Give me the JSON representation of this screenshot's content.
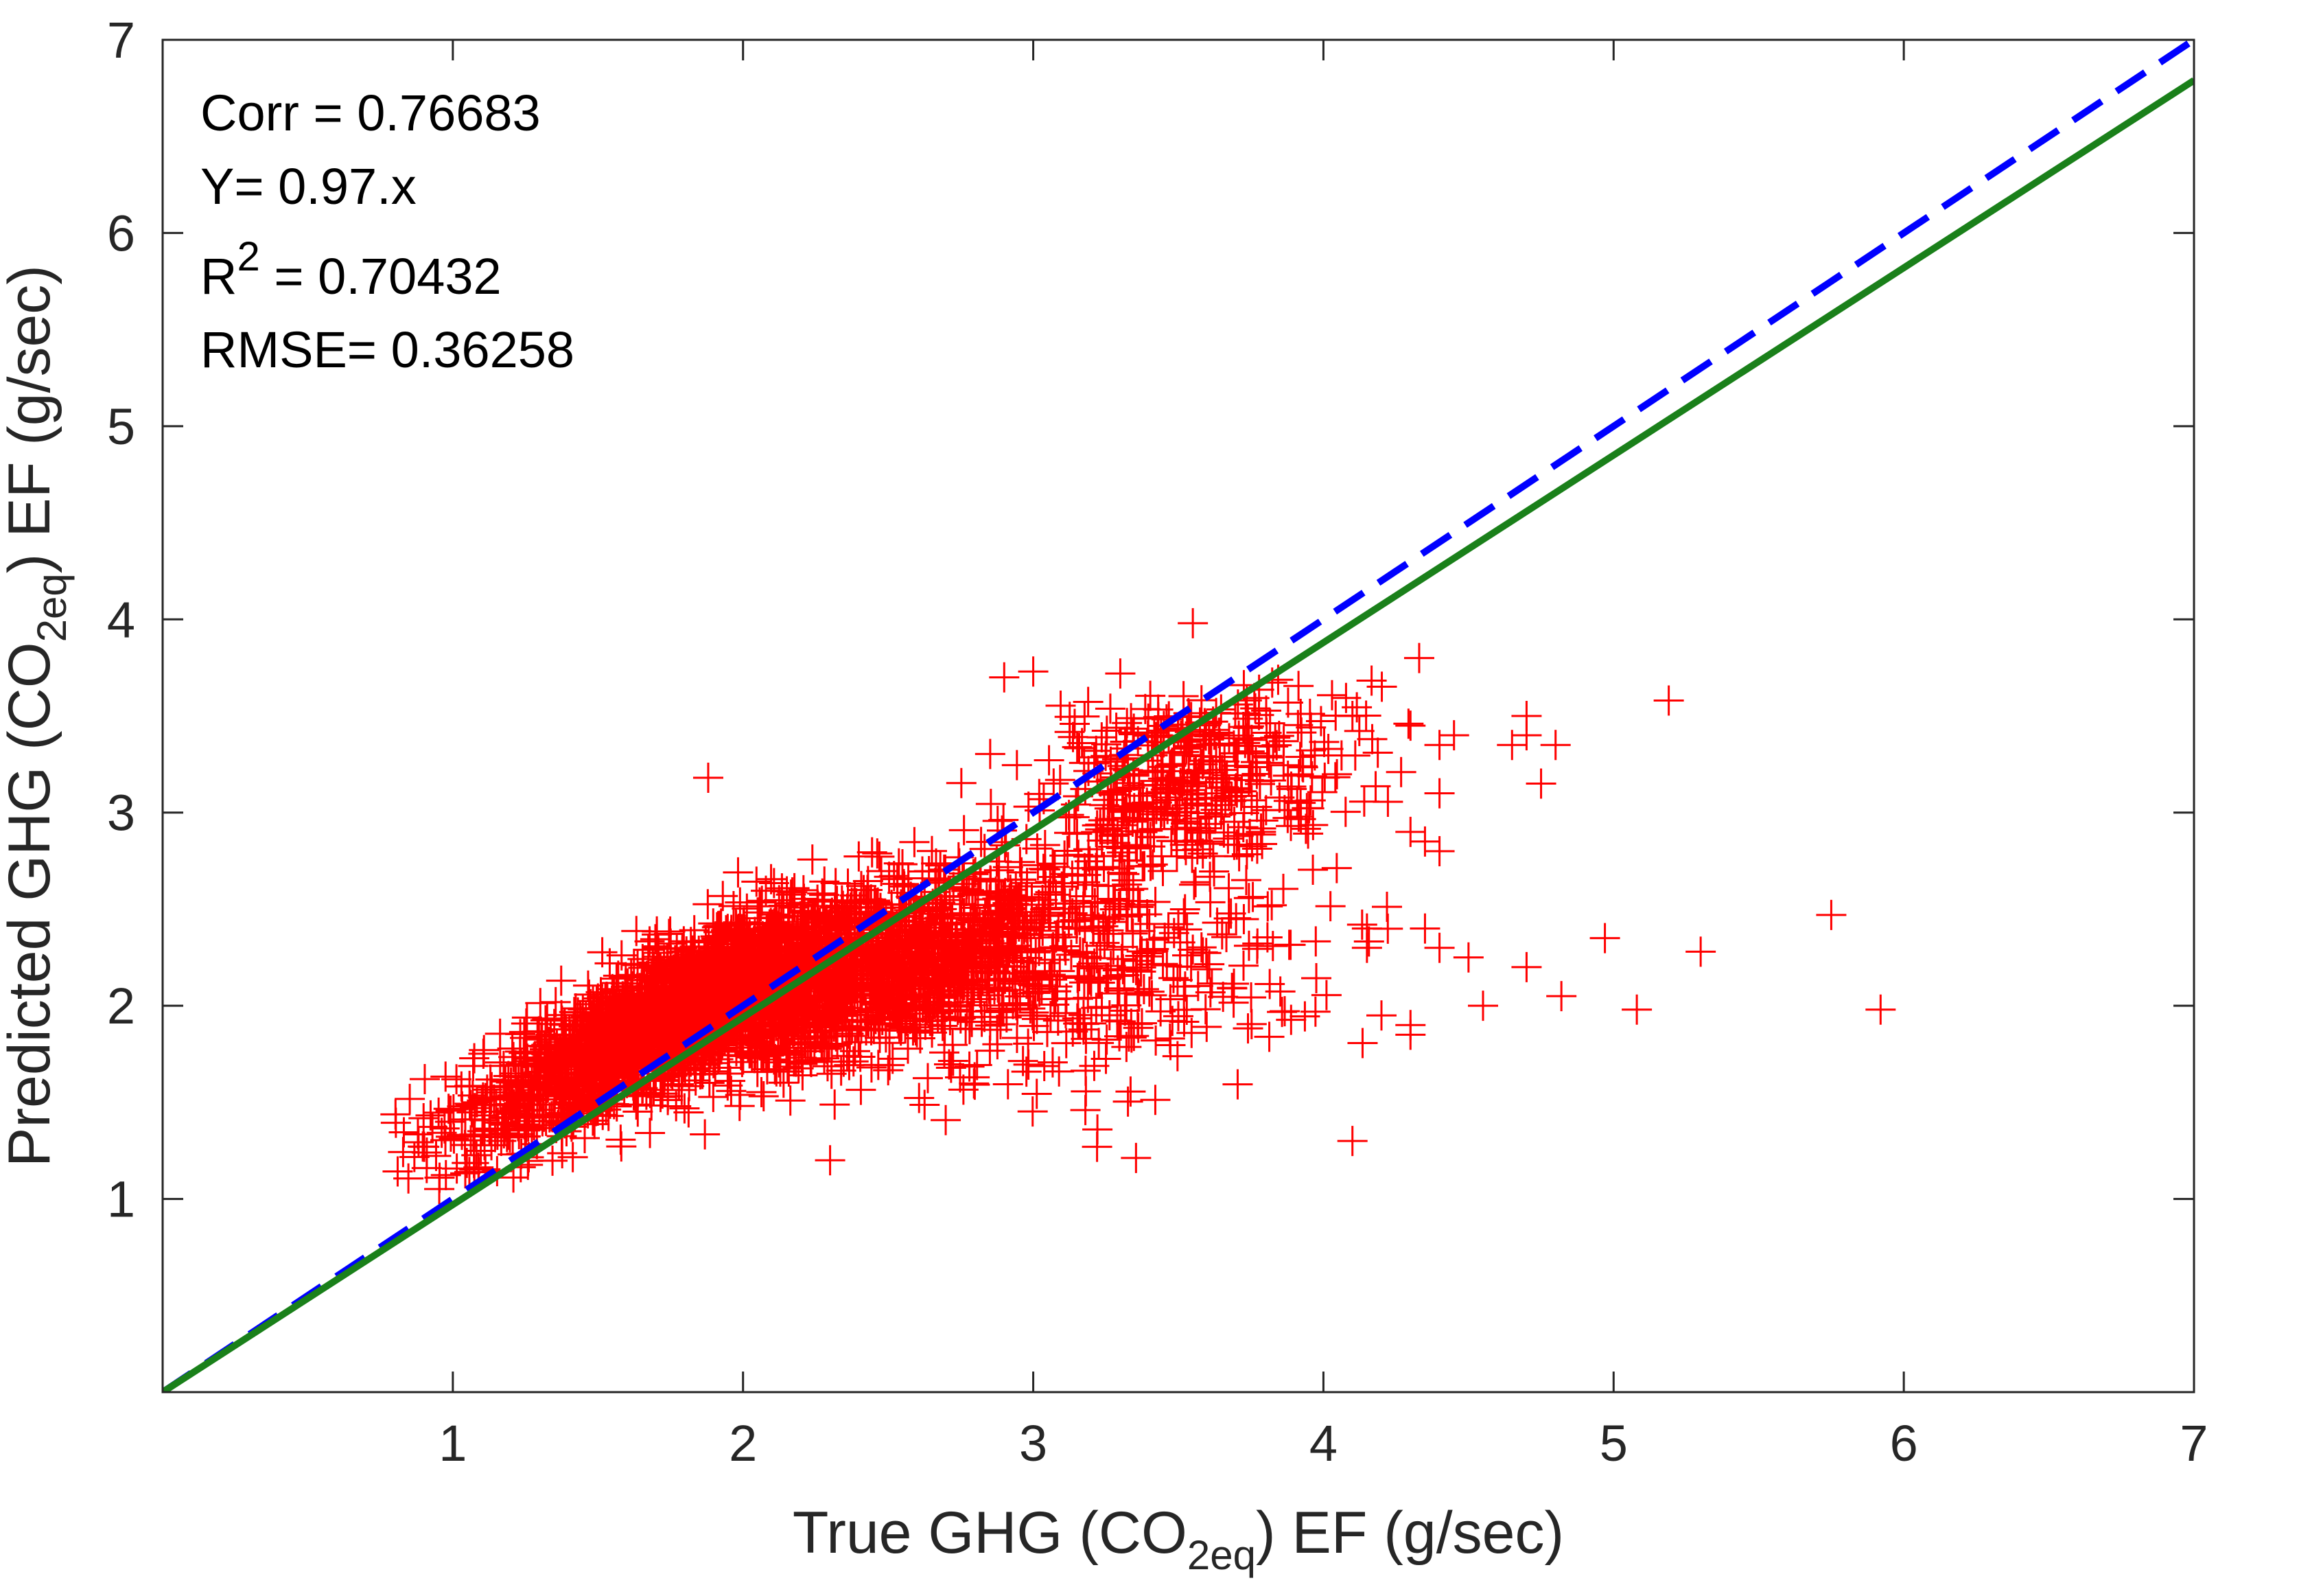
{
  "chart_data": {
    "type": "scatter",
    "xlabel": {
      "prefix": "True GHG (CO",
      "sub": "2eq",
      "suffix": ") EF (g/sec)"
    },
    "ylabel": {
      "prefix": "Predicted GHG (CO",
      "sub": "2eq",
      "suffix": ") EF (g/sec)"
    },
    "xlim": [
      0,
      7
    ],
    "ylim": [
      0,
      7
    ],
    "x_ticks": [
      "1",
      "2",
      "3",
      "4",
      "5",
      "6",
      "7"
    ],
    "y_ticks": [
      "1",
      "2",
      "3",
      "4",
      "5",
      "6",
      "7"
    ],
    "grid": false,
    "annotations": {
      "corr": "Corr = 0.76683",
      "fit": "Y= 0.97.x",
      "r2_prefix": "R",
      "r2_sup": "2",
      "r2_suffix": " = 0.70432",
      "rmse": "RMSE= 0.36258"
    },
    "series": [
      {
        "marker": "plus",
        "color": "#ff0000",
        "clusters": [
          {
            "cx": 1.75,
            "cy": 1.95,
            "sx": 0.35,
            "sy": 0.32,
            "rho": 0.85,
            "n": 2200
          },
          {
            "cx": 2.45,
            "cy": 2.15,
            "sx": 0.35,
            "sy": 0.25,
            "rho": 0.7,
            "n": 1300
          },
          {
            "cx": 3.55,
            "cy": 3.2,
            "sx": 0.28,
            "sy": 0.25,
            "rho": 0.35,
            "n": 450
          },
          {
            "cx": 3.2,
            "cy": 2.1,
            "sx": 0.4,
            "sy": 0.3,
            "rho": 0.4,
            "n": 350
          }
        ],
        "outliers": [
          [
            3.55,
            3.98
          ],
          [
            4.33,
            3.8
          ],
          [
            3.3,
            3.72
          ],
          [
            2.9,
            3.7
          ],
          [
            3.0,
            3.73
          ],
          [
            4.1,
            3.5
          ],
          [
            4.3,
            3.45
          ],
          [
            4.4,
            3.35
          ],
          [
            4.45,
            3.4
          ],
          [
            4.4,
            3.1
          ],
          [
            4.65,
            3.35
          ],
          [
            4.7,
            3.5
          ],
          [
            4.7,
            3.4
          ],
          [
            4.75,
            3.15
          ],
          [
            4.8,
            3.35
          ],
          [
            4.3,
            2.9
          ],
          [
            4.35,
            2.85
          ],
          [
            4.4,
            2.8
          ],
          [
            4.15,
            2.4
          ],
          [
            4.15,
            2.3
          ],
          [
            4.35,
            2.4
          ],
          [
            4.4,
            2.3
          ],
          [
            4.5,
            2.25
          ],
          [
            4.2,
            1.95
          ],
          [
            4.3,
            1.9
          ],
          [
            4.3,
            1.85
          ],
          [
            4.55,
            2.0
          ],
          [
            4.7,
            2.2
          ],
          [
            4.82,
            2.05
          ],
          [
            4.97,
            2.35
          ],
          [
            5.08,
            1.98
          ],
          [
            5.19,
            3.58
          ],
          [
            5.3,
            2.28
          ],
          [
            5.75,
            2.47
          ],
          [
            5.92,
            1.98
          ],
          [
            4.1,
            1.3
          ],
          [
            3.22,
            1.27
          ],
          [
            2.3,
            1.2
          ],
          [
            1.88,
            3.18
          ]
        ]
      }
    ],
    "lines": [
      {
        "name": "",
        "style": "dashed",
        "color": "#0000ff",
        "slope": 1.0
      },
      {
        "name": "",
        "style": "solid",
        "color": "#1a801a",
        "slope": 0.97
      }
    ]
  }
}
